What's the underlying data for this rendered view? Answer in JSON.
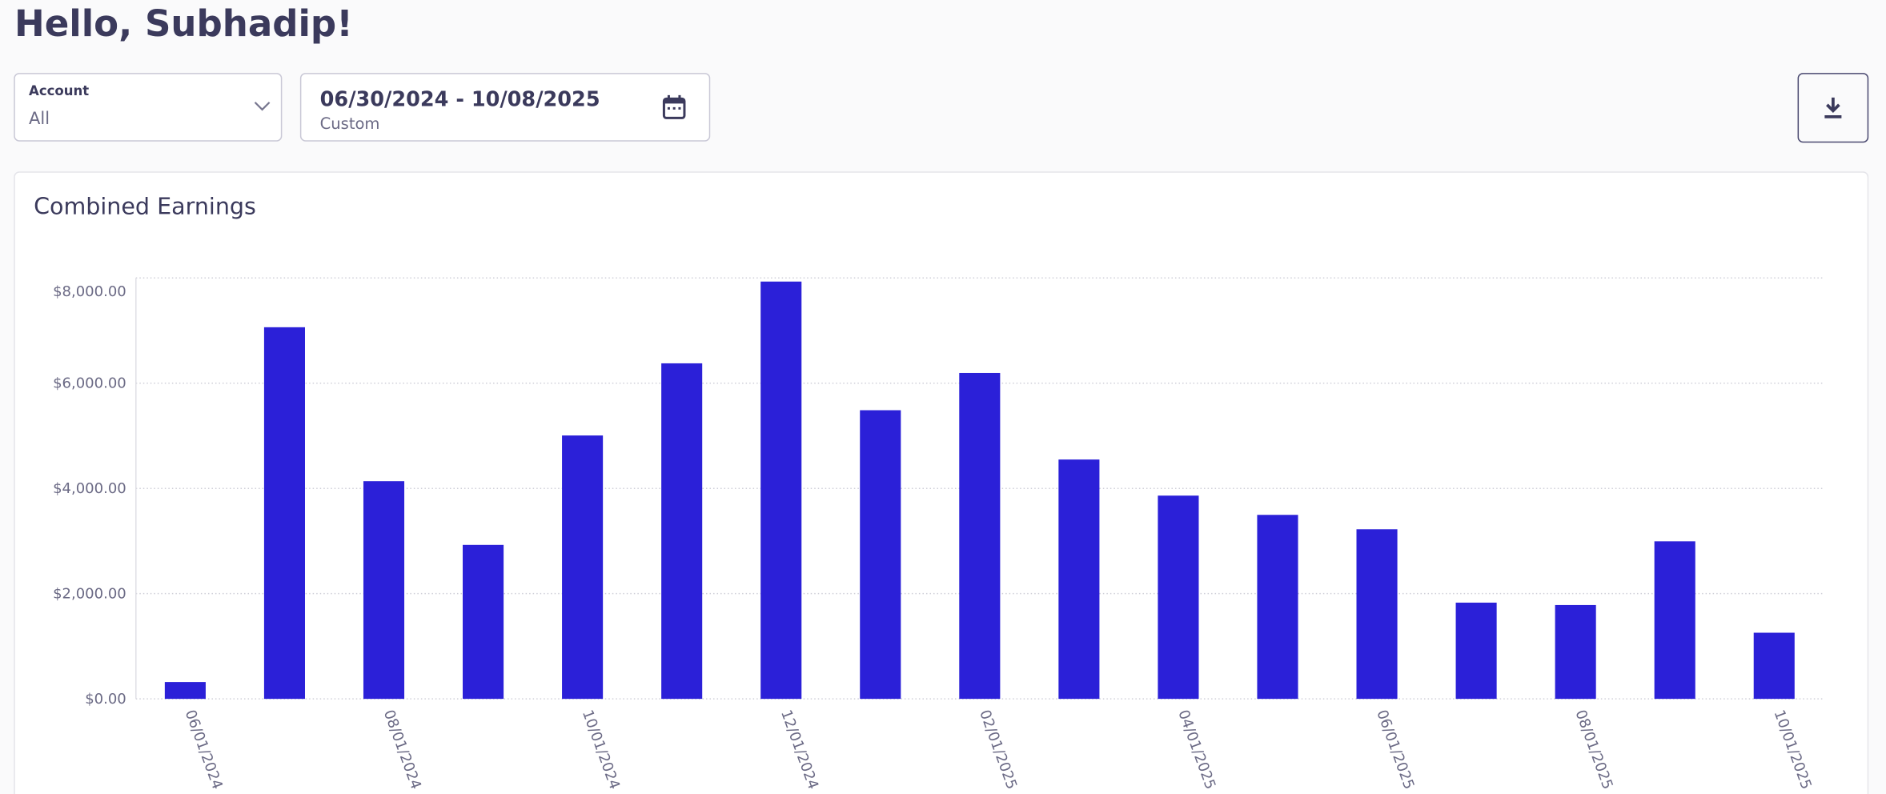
{
  "header": {
    "greeting": "Hello, Subhadip!"
  },
  "filters": {
    "account_label": "Account",
    "account_value": "All",
    "date_range": "06/30/2024 - 10/08/2025",
    "date_preset": "Custom"
  },
  "chart_data": {
    "type": "bar",
    "title": "Combined Earnings",
    "categories": [
      "06/01/2024",
      null,
      "08/01/2024",
      null,
      "10/01/2024",
      null,
      "12/01/2024",
      null,
      "02/01/2025",
      null,
      "04/01/2025",
      null,
      "06/01/2025",
      null,
      "08/01/2025",
      null,
      "10/01/2025"
    ],
    "values": [
      320,
      7063,
      4137,
      2926,
      5006,
      6377,
      7931,
      5486,
      6194,
      4549,
      3863,
      3497,
      3223,
      1829,
      1783,
      2994,
      1257
    ],
    "color": "#2b20d8",
    "ylim": [
      0,
      8000
    ],
    "yticks": [
      {
        "value": 0,
        "label": "$0.00"
      },
      {
        "value": 2000,
        "label": "$2,000.00"
      },
      {
        "value": 4000,
        "label": "$4,000.00"
      },
      {
        "value": 6000,
        "label": "$6,000.00"
      },
      {
        "value": 8000,
        "label": "$8,000.00"
      }
    ],
    "grid": true
  }
}
